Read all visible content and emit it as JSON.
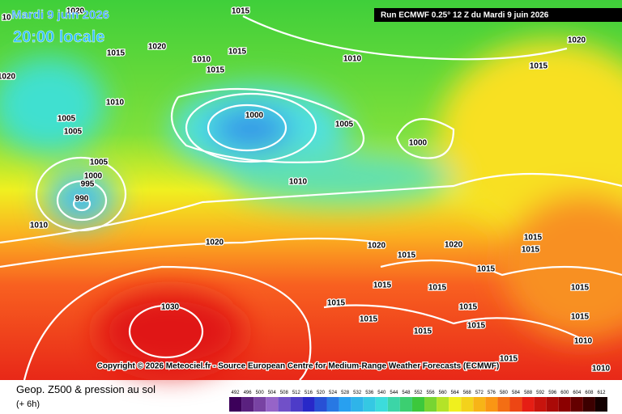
{
  "header": {
    "date": "Mardi 9 juin 2026",
    "time": "20:00 locale",
    "run": "Run ECMWF 0.25° 12 Z du Mardi 9 juin 2026"
  },
  "copyright": "Copyright © 2026 Meteociel.fr - Source European Centre for Medium-Range Weather Forecasts (ECMWF)",
  "footer": {
    "title": "Geop. Z500 & pression au sol",
    "step": "(+ 6h)"
  },
  "legend": {
    "labels": [
      "492",
      "496",
      "500",
      "504",
      "508",
      "512",
      "516",
      "520",
      "524",
      "528",
      "532",
      "536",
      "540",
      "544",
      "548",
      "552",
      "556",
      "560",
      "564",
      "568",
      "572",
      "576",
      "580",
      "584",
      "588",
      "592",
      "596",
      "600",
      "604",
      "608",
      "612"
    ]
  },
  "isobars": {
    "labels": [
      "10",
      "1020",
      "1015",
      "1015",
      "1020",
      "1010",
      "1015",
      "1015",
      "1010",
      "1020",
      "1015",
      "1020",
      "1010",
      "1000",
      "1005",
      "1005",
      "1005",
      "1000",
      "1005",
      "1000",
      "995",
      "990",
      "1010",
      "1010",
      "1020",
      "1020",
      "1020",
      "1015",
      "1015",
      "1015",
      "1015",
      "1015",
      "1015",
      "1015",
      "1015",
      "1015",
      "1030",
      "1015",
      "1015",
      "1015",
      "1015",
      "1010",
      "1015",
      "1010"
    ]
  }
}
